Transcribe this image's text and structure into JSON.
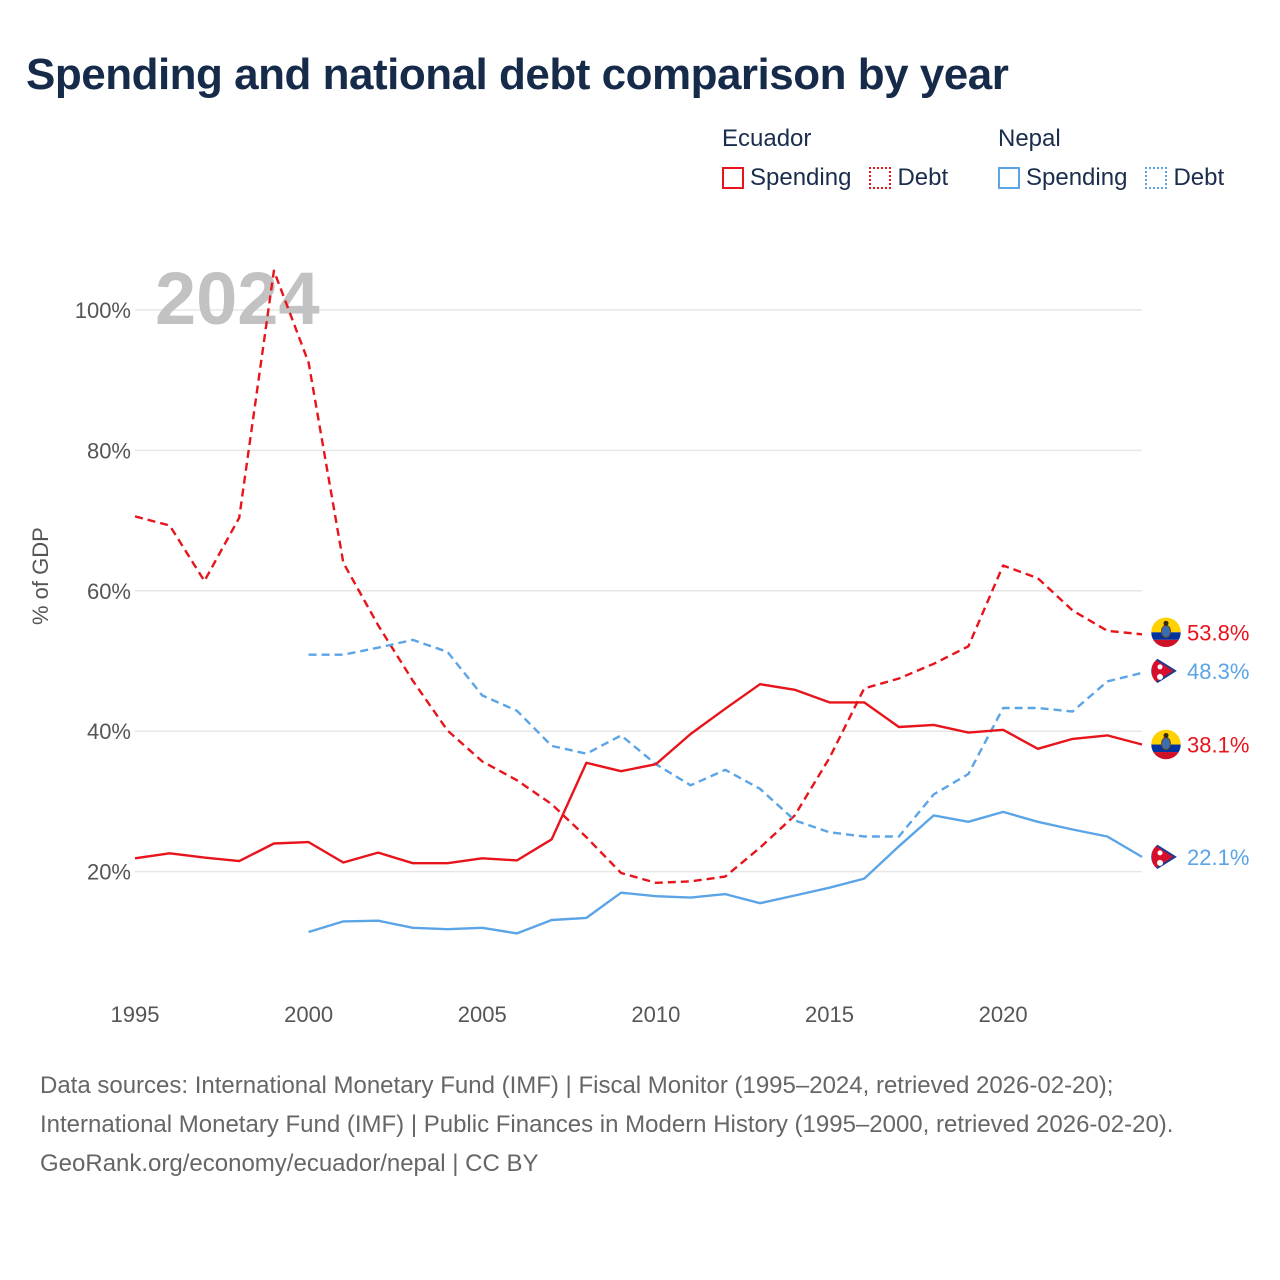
{
  "title": "Spending and national debt comparison by year",
  "year_overlay": "2024",
  "legend": {
    "groups": [
      {
        "name": "Ecuador",
        "items": [
          {
            "label": "Spending",
            "style": "solid",
            "color": "#e8141b"
          },
          {
            "label": "Debt",
            "style": "dotted",
            "color": "#e8141b"
          }
        ]
      },
      {
        "name": "Nepal",
        "items": [
          {
            "label": "Spending",
            "style": "solid",
            "color": "#5ba4e6"
          },
          {
            "label": "Debt",
            "style": "dotted",
            "color": "#5ba4e6"
          }
        ]
      }
    ]
  },
  "chart_data": {
    "type": "line",
    "title": "Spending and national debt comparison by year",
    "xlabel": "",
    "ylabel": "% of GDP",
    "xlim": [
      1995,
      2024
    ],
    "ylim": [
      0,
      100
    ],
    "xticks": [
      1995,
      2000,
      2005,
      2010,
      2015,
      2020
    ],
    "yticks": [
      20,
      40,
      60,
      80,
      100
    ],
    "ytick_labels": [
      "20%",
      "40%",
      "60%",
      "80%",
      "100%"
    ],
    "grid": true,
    "series": [
      {
        "name": "Ecuador Debt",
        "country": "Ecuador",
        "kind": "Debt",
        "color": "#e8141b",
        "dash": true,
        "x": [
          1995,
          1996,
          1997,
          1998,
          1999,
          2000,
          2001,
          2002,
          2003,
          2004,
          2005,
          2006,
          2007,
          2008,
          2009,
          2010,
          2011,
          2012,
          2013,
          2014,
          2015,
          2016,
          2017,
          2018,
          2019,
          2020,
          2021,
          2022,
          2023,
          2024
        ],
        "y": [
          70.6,
          69.3,
          61.4,
          70.4,
          105.6,
          92.5,
          64.0,
          55.1,
          47.2,
          40.1,
          35.7,
          33.0,
          29.6,
          24.9,
          19.8,
          18.4,
          18.6,
          19.3,
          23.4,
          28.0,
          36.2,
          46.1,
          47.5,
          49.6,
          52.1,
          63.6,
          61.8,
          57.2,
          54.3,
          53.8
        ],
        "end_label": "53.8%"
      },
      {
        "name": "Nepal Debt",
        "country": "Nepal",
        "kind": "Debt",
        "color": "#5ba4e6",
        "dash": true,
        "x": [
          2000,
          2001,
          2002,
          2003,
          2004,
          2005,
          2006,
          2007,
          2008,
          2009,
          2010,
          2011,
          2012,
          2013,
          2014,
          2015,
          2016,
          2017,
          2018,
          2019,
          2020,
          2021,
          2022,
          2023,
          2024
        ],
        "y": [
          50.9,
          50.9,
          51.9,
          53.0,
          51.3,
          45.1,
          42.9,
          37.9,
          36.8,
          39.4,
          35.3,
          32.3,
          34.5,
          31.8,
          27.3,
          25.6,
          25.0,
          25.0,
          31.0,
          33.9,
          43.3,
          43.3,
          42.8,
          47.1,
          48.3
        ],
        "end_label": "48.3%"
      },
      {
        "name": "Ecuador Spending",
        "country": "Ecuador",
        "kind": "Spending",
        "color": "#e8141b",
        "dash": false,
        "x": [
          1995,
          1996,
          1997,
          1998,
          1999,
          2000,
          2001,
          2002,
          2003,
          2004,
          2005,
          2006,
          2007,
          2008,
          2009,
          2010,
          2011,
          2012,
          2013,
          2014,
          2015,
          2016,
          2017,
          2018,
          2019,
          2020,
          2021,
          2022,
          2023,
          2024
        ],
        "y": [
          21.9,
          22.6,
          22.0,
          21.5,
          24.0,
          24.2,
          21.3,
          22.7,
          21.2,
          21.2,
          21.9,
          21.6,
          24.6,
          35.5,
          34.3,
          35.3,
          39.6,
          43.2,
          46.7,
          45.9,
          44.1,
          44.1,
          40.6,
          40.9,
          39.8,
          40.2,
          37.5,
          38.9,
          39.4,
          38.1
        ],
        "end_label": "38.1%"
      },
      {
        "name": "Nepal Spending",
        "country": "Nepal",
        "kind": "Spending",
        "color": "#5ba4e6",
        "dash": false,
        "x": [
          2000,
          2001,
          2002,
          2003,
          2004,
          2005,
          2006,
          2007,
          2008,
          2009,
          2010,
          2011,
          2012,
          2013,
          2014,
          2015,
          2016,
          2017,
          2018,
          2019,
          2020,
          2021,
          2022,
          2023,
          2024
        ],
        "y": [
          11.4,
          12.9,
          13.0,
          12.0,
          11.8,
          12.0,
          11.2,
          13.1,
          13.4,
          17.0,
          16.5,
          16.3,
          16.8,
          15.5,
          16.6,
          17.7,
          19.0,
          23.6,
          28.0,
          27.1,
          28.5,
          27.1,
          26.0,
          25.0,
          22.1
        ],
        "end_label": "22.1%"
      }
    ]
  },
  "footer": {
    "sources": "Data sources: International Monetary Fund (IMF) | Fiscal Monitor (1995–2024, retrieved 2026-02-20); International Monetary Fund (IMF) | Public Finances in Modern History (1995–2000, retrieved 2026-02-20).",
    "credit": "GeoRank.org/economy/ecuador/nepal | CC BY"
  },
  "colors": {
    "ecuador": "#e8141b",
    "nepal": "#5ba4e6",
    "title": "#162a4a",
    "grid": "#e6e6e6",
    "year_overlay": "#c2c2c2"
  }
}
